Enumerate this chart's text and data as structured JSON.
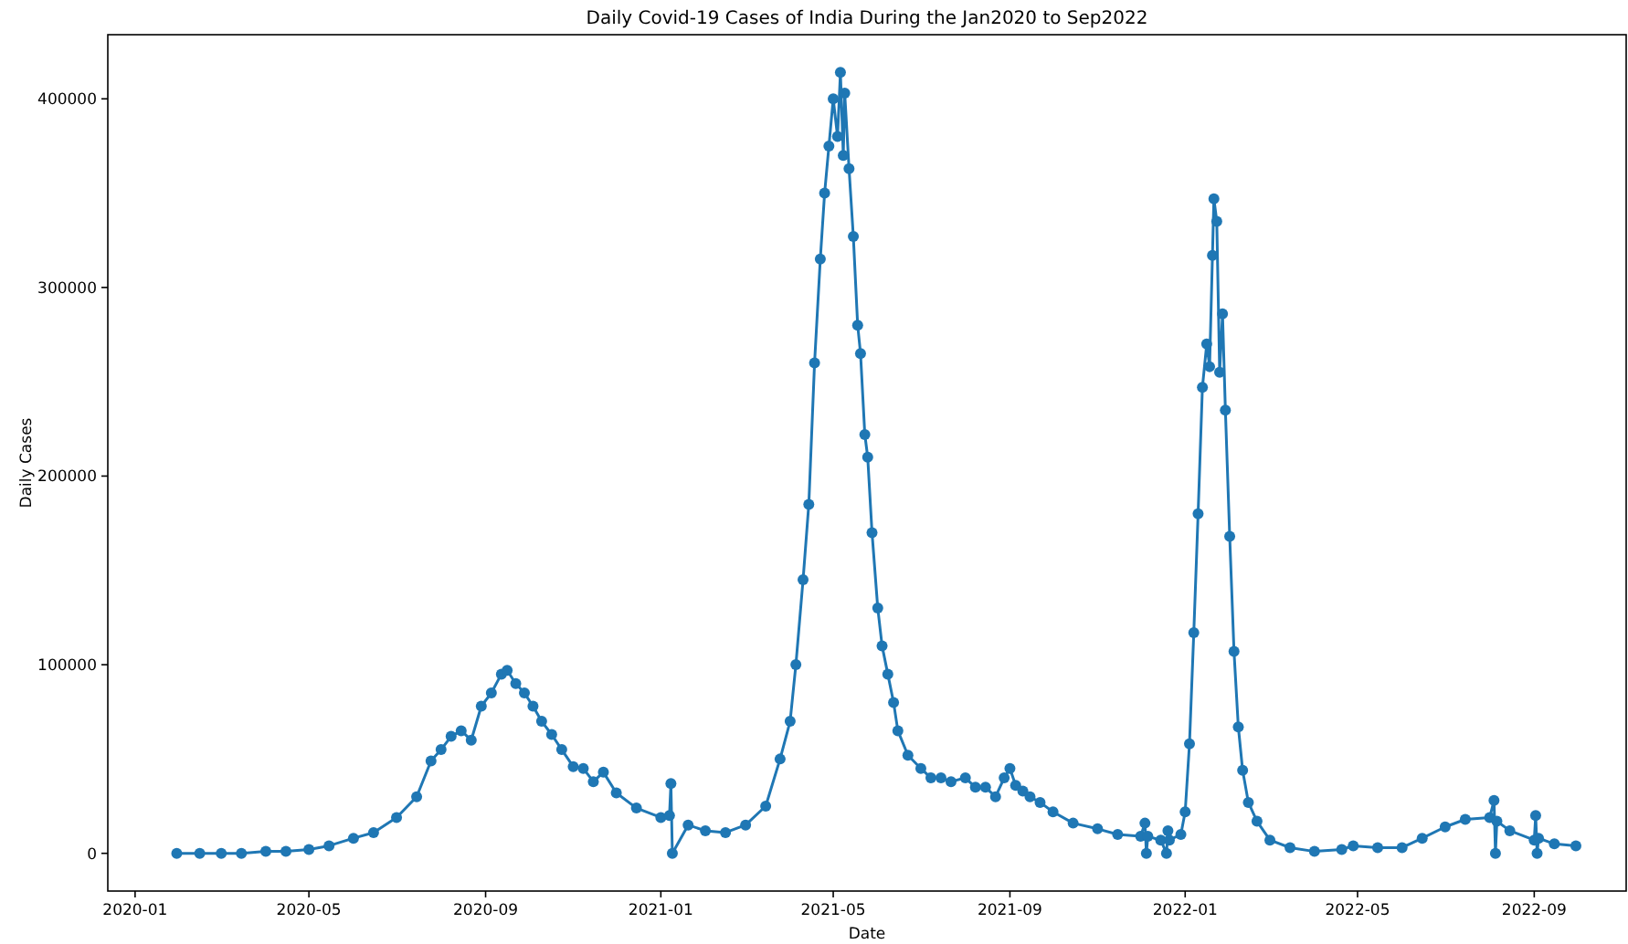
{
  "chart_data": {
    "type": "line",
    "title": "Daily Covid-19 Cases of India During the Jan2020 to Sep2022",
    "xlabel": "Date",
    "ylabel": "Daily Cases",
    "x": [
      "2020-01-30",
      "2020-02-15",
      "2020-03-01",
      "2020-03-15",
      "2020-04-01",
      "2020-04-15",
      "2020-05-01",
      "2020-05-15",
      "2020-06-01",
      "2020-06-15",
      "2020-07-01",
      "2020-07-15",
      "2020-07-25",
      "2020-08-01",
      "2020-08-08",
      "2020-08-15",
      "2020-08-22",
      "2020-08-29",
      "2020-09-05",
      "2020-09-12",
      "2020-09-16",
      "2020-09-22",
      "2020-09-28",
      "2020-10-04",
      "2020-10-10",
      "2020-10-17",
      "2020-10-24",
      "2020-11-01",
      "2020-11-08",
      "2020-11-15",
      "2020-11-22",
      "2020-12-01",
      "2020-12-15",
      "2021-01-01",
      "2021-01-07",
      "2021-01-08",
      "2021-01-09",
      "2021-01-20",
      "2021-02-01",
      "2021-02-15",
      "2021-03-01",
      "2021-03-15",
      "2021-03-25",
      "2021-04-01",
      "2021-04-05",
      "2021-04-10",
      "2021-04-14",
      "2021-04-18",
      "2021-04-22",
      "2021-04-25",
      "2021-04-28",
      "2021-05-01",
      "2021-05-04",
      "2021-05-06",
      "2021-05-08",
      "2021-05-09",
      "2021-05-12",
      "2021-05-15",
      "2021-05-18",
      "2021-05-20",
      "2021-05-23",
      "2021-05-25",
      "2021-05-28",
      "2021-06-01",
      "2021-06-04",
      "2021-06-08",
      "2021-06-12",
      "2021-06-15",
      "2021-06-22",
      "2021-07-01",
      "2021-07-08",
      "2021-07-15",
      "2021-07-22",
      "2021-08-01",
      "2021-08-08",
      "2021-08-15",
      "2021-08-22",
      "2021-08-28",
      "2021-09-01",
      "2021-09-05",
      "2021-09-10",
      "2021-09-15",
      "2021-09-22",
      "2021-10-01",
      "2021-10-15",
      "2021-11-01",
      "2021-11-15",
      "2021-12-01",
      "2021-12-04",
      "2021-12-05",
      "2021-12-06",
      "2021-12-15",
      "2021-12-19",
      "2021-12-20",
      "2021-12-21",
      "2021-12-29",
      "2022-01-01",
      "2022-01-04",
      "2022-01-07",
      "2022-01-10",
      "2022-01-13",
      "2022-01-16",
      "2022-01-18",
      "2022-01-20",
      "2022-01-21",
      "2022-01-23",
      "2022-01-25",
      "2022-01-27",
      "2022-01-29",
      "2022-02-01",
      "2022-02-04",
      "2022-02-07",
      "2022-02-10",
      "2022-02-14",
      "2022-02-20",
      "2022-03-01",
      "2022-03-15",
      "2022-04-01",
      "2022-04-20",
      "2022-04-28",
      "2022-05-15",
      "2022-06-01",
      "2022-06-15",
      "2022-07-01",
      "2022-07-15",
      "2022-08-01",
      "2022-08-04",
      "2022-08-05",
      "2022-08-06",
      "2022-08-15",
      "2022-09-01",
      "2022-09-02",
      "2022-09-03",
      "2022-09-04",
      "2022-09-15",
      "2022-09-30"
    ],
    "series": [
      {
        "color": "#1f77b4",
        "values": [
          0,
          0,
          0,
          0,
          1000,
          1000,
          2000,
          4000,
          8000,
          11000,
          19000,
          30000,
          49000,
          55000,
          62000,
          65000,
          60000,
          78000,
          85000,
          95000,
          97000,
          90000,
          85000,
          78000,
          70000,
          63000,
          55000,
          46000,
          45000,
          38000,
          43000,
          32000,
          24000,
          19000,
          20000,
          37000,
          0,
          15000,
          12000,
          11000,
          15000,
          25000,
          50000,
          70000,
          100000,
          145000,
          185000,
          260000,
          315000,
          350000,
          375000,
          400000,
          380000,
          414000,
          370000,
          403000,
          363000,
          327000,
          280000,
          265000,
          222000,
          210000,
          170000,
          130000,
          110000,
          95000,
          80000,
          65000,
          52000,
          45000,
          40000,
          40000,
          38000,
          40000,
          35000,
          35000,
          30000,
          40000,
          45000,
          36000,
          33000,
          30000,
          27000,
          22000,
          16000,
          13000,
          10000,
          9000,
          16000,
          0,
          9000,
          7000,
          0,
          12000,
          7000,
          10000,
          22000,
          58000,
          117000,
          180000,
          247000,
          270000,
          258000,
          317000,
          347000,
          335000,
          255000,
          286000,
          235000,
          168000,
          107000,
          67000,
          44000,
          27000,
          17000,
          7000,
          3000,
          1000,
          2000,
          4000,
          3000,
          3000,
          8000,
          14000,
          18000,
          19000,
          28000,
          0,
          17000,
          12000,
          7000,
          20000,
          0,
          8000,
          5000,
          4000
        ]
      }
    ],
    "xlim": [
      "2019-12-13",
      "2022-11-04"
    ],
    "xticks": [
      "2020-01",
      "2020-05",
      "2020-09",
      "2021-01",
      "2021-05",
      "2021-09",
      "2022-01",
      "2022-05",
      "2022-09"
    ],
    "ylim": [
      -20000,
      434000
    ],
    "yticks": [
      0,
      100000,
      200000,
      300000,
      400000
    ],
    "marker": "circle",
    "line_style": "solid",
    "grid": false
  }
}
